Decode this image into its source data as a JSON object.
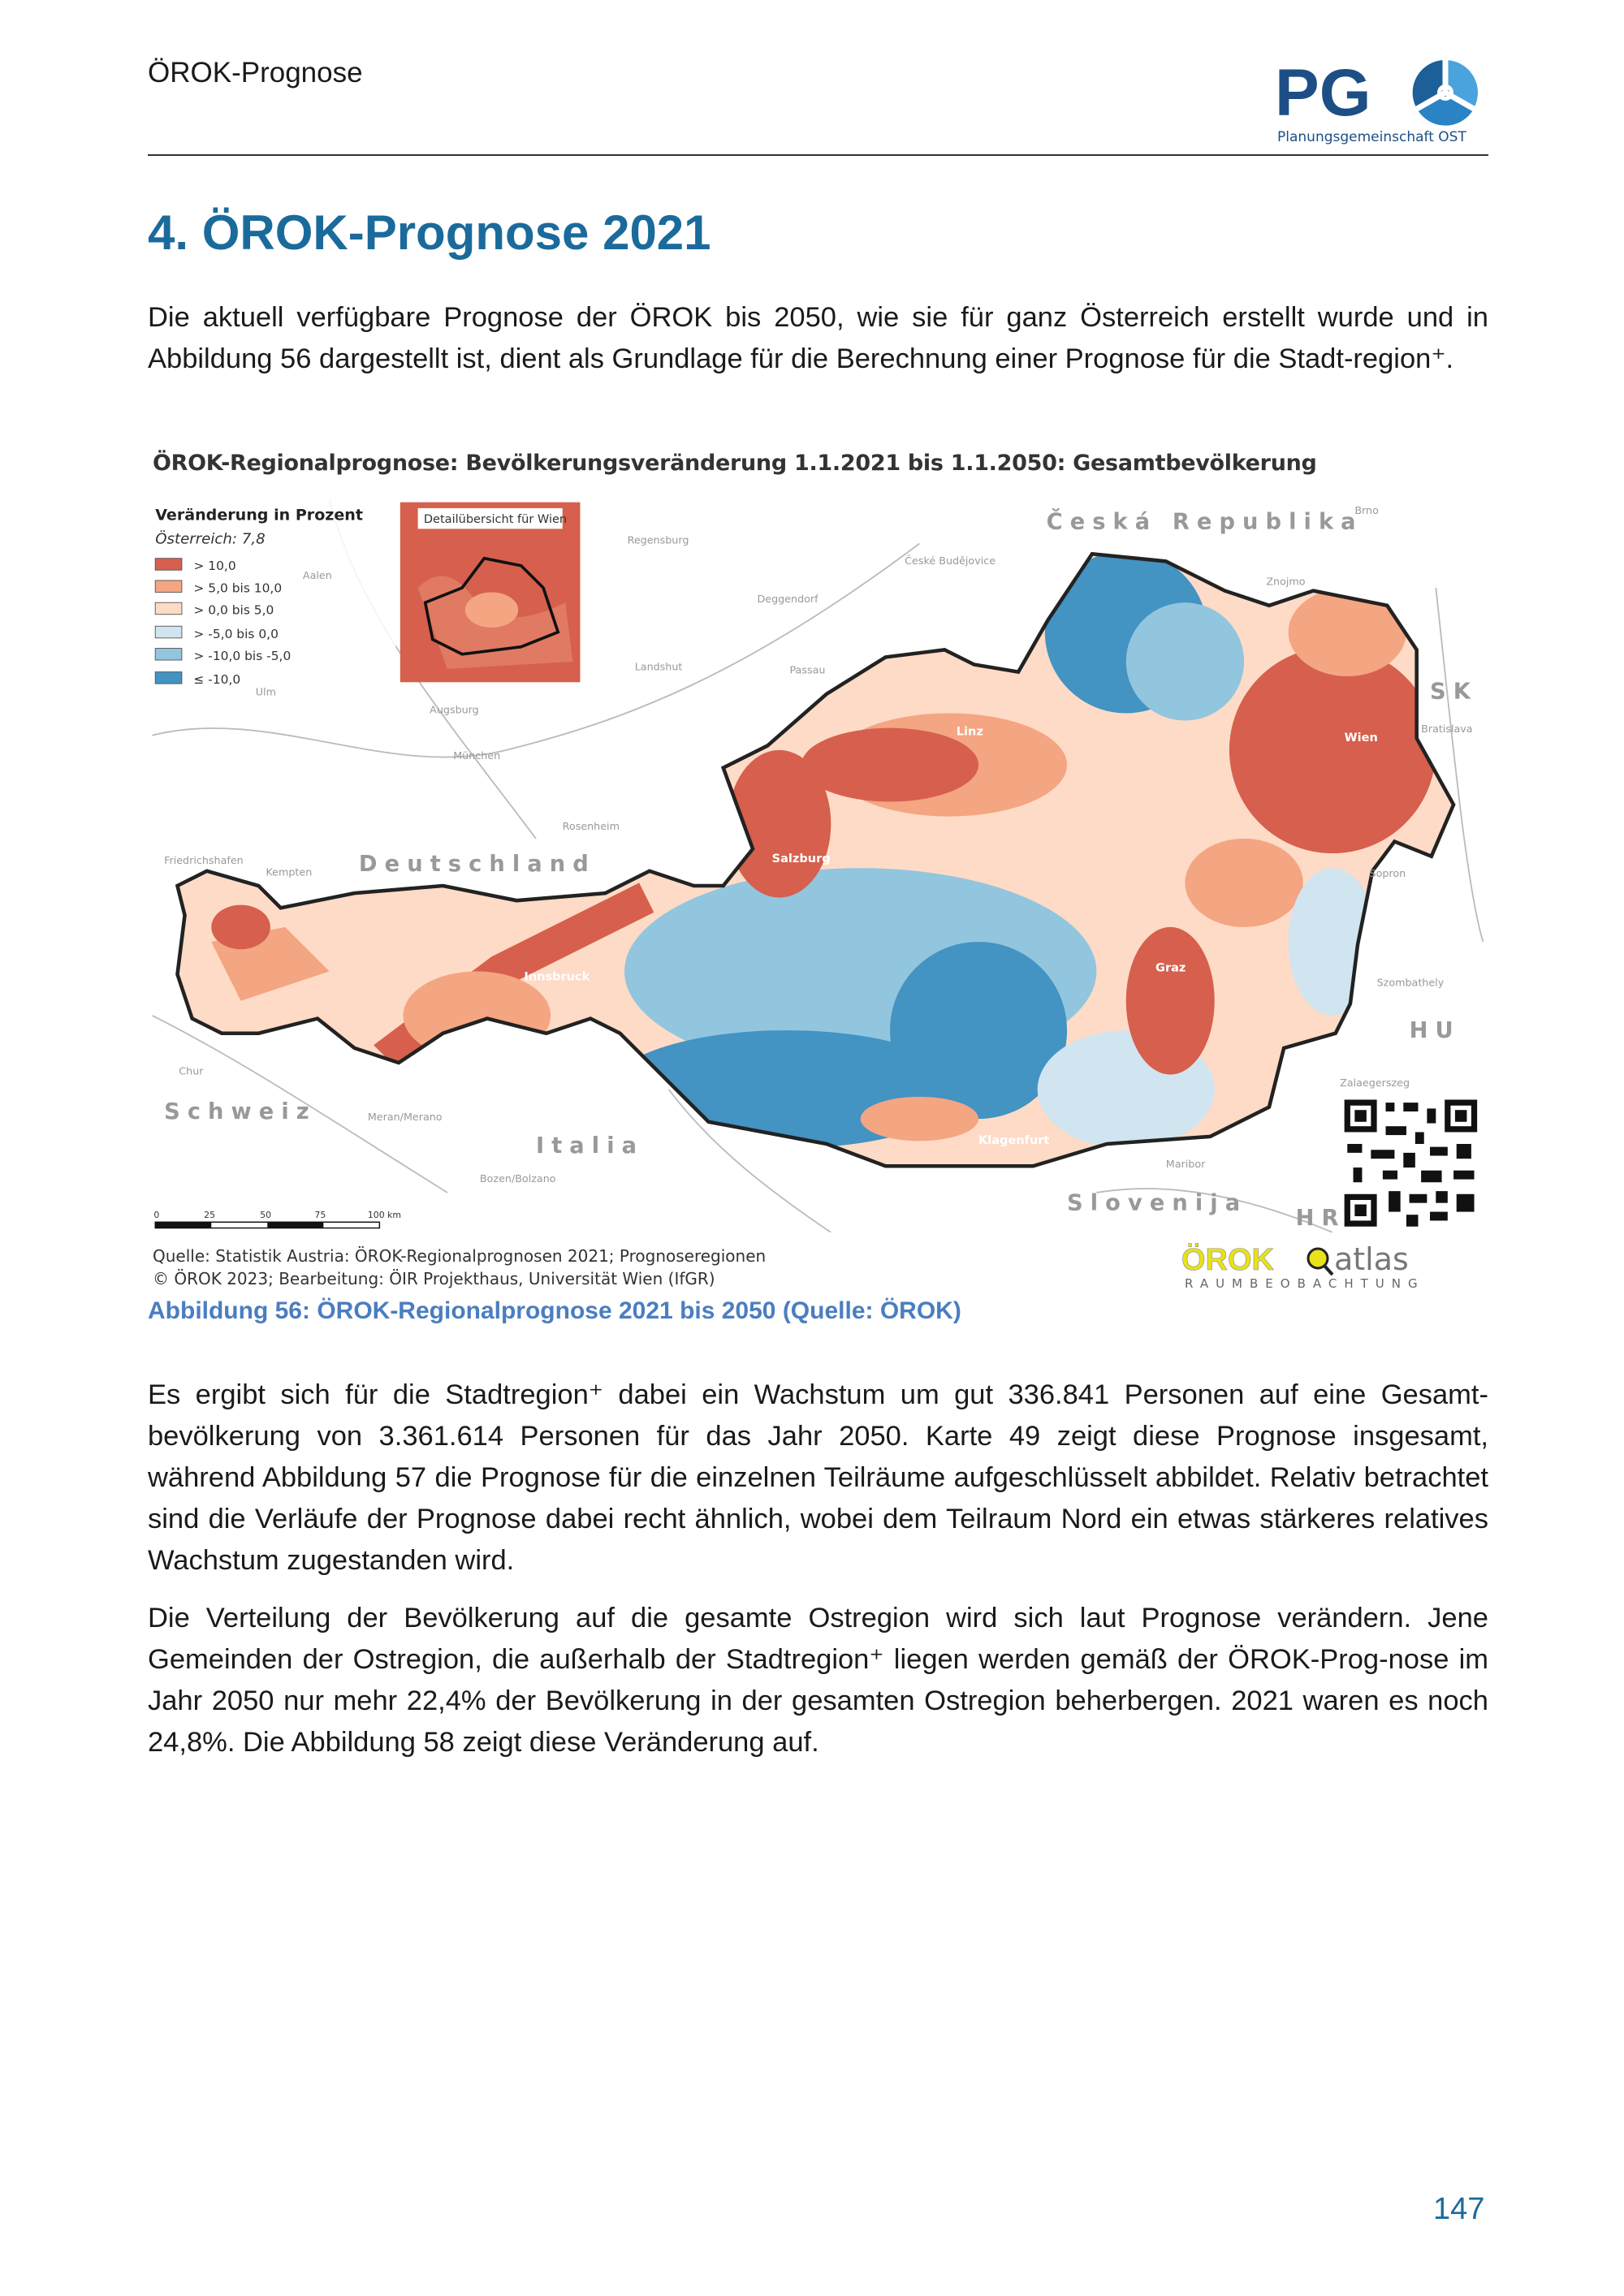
{
  "header": {
    "running_title": "ÖROK-Prognose",
    "logo_text": "PG",
    "logo_subtitle": "Planungsgemeinschaft OST"
  },
  "section": {
    "title": "4. ÖROK-Prognose 2021"
  },
  "paragraphs": [
    "Die aktuell verfügbare Prognose der ÖROK bis 2050, wie sie für ganz Österreich erstellt wurde und in Abbildung 56 dargestellt ist, dient als Grundlage für die Berechnung einer Prognose für die Stadt-region⁺.",
    "Es ergibt sich für die Stadtregion⁺ dabei ein Wachstum um gut 336.841 Personen auf eine Gesamt-bevölkerung von 3.361.614 Personen für das Jahr 2050. Karte 49 zeigt diese Prognose insgesamt, während Abbildung 57 die Prognose für die einzelnen Teilräume aufgeschlüsselt abbildet. Relativ betrachtet sind die Verläufe der Prognose dabei recht ähnlich, wobei dem Teilraum Nord ein etwas stärkeres relatives Wachstum zugestanden wird.",
    "Die Verteilung der Bevölkerung auf die gesamte Ostregion wird sich laut Prognose verändern. Jene Gemeinden der Ostregion, die außerhalb der Stadtregion⁺ liegen werden gemäß der ÖROK-Prog-nose im Jahr 2050 nur mehr 22,4% der Bevölkerung in der gesamten Ostregion beherbergen. 2021 waren es noch 24,8%. Die Abbildung 58 zeigt diese Veränderung auf."
  ],
  "figure": {
    "title": "ÖROK-Regionalprognose: Bevölkerungsveränderung 1.1.2021 bis 1.1.2050: Gesamtbevölkerung",
    "legend": {
      "title": "Veränderung in Prozent",
      "subtitle": "Österreich: 7,8",
      "classes": [
        {
          "label": "> 10,0",
          "color": "#d6604d"
        },
        {
          "label": "> 5,0  bis  10,0",
          "color": "#f4a582"
        },
        {
          "label": "> 0,0  bis  5,0",
          "color": "#fddbc7"
        },
        {
          "label": "> -5,0  bis  0,0",
          "color": "#d1e5f0"
        },
        {
          "label": "> -10,0  bis  -5,0",
          "color": "#92c5de"
        },
        {
          "label": "≤ -10,0",
          "color": "#4393c3"
        }
      ]
    },
    "inset_label": "Detailübersicht für Wien",
    "countries": [
      "Česká Republika",
      "SK",
      "Deutschland",
      "Schweiz",
      "Italia",
      "Slovenija",
      "HR",
      "HU"
    ],
    "cities": [
      "Regensburg",
      "České Budějovice",
      "Brno",
      "Znojmo",
      "Deggendorf",
      "Passau",
      "Landshut",
      "Augsburg",
      "München",
      "Rosenheim",
      "Bratislava",
      "Friedrichshafen",
      "Kempten",
      "Aalen",
      "Ulm",
      "Sopron",
      "Szombathely",
      "Zalaegerszeg",
      "Maribor",
      "Meran/Merano",
      "Bozen/Bolzano",
      "Chur",
      "Wien",
      "Linz",
      "Graz",
      "Innsbruck",
      "Salzburg",
      "Klagenfurt"
    ],
    "scalebar": {
      "ticks": [
        "0",
        "25",
        "50",
        "75",
        "100 km"
      ]
    },
    "source_line1": "Quelle: Statistik Austria: ÖROK-Regionalprognosen 2021; Prognoseregionen",
    "source_line2": "© ÖROK 2023; Bearbeitung: ÖIR Projekthaus, Universität Wien (IfGR)",
    "atlas_logo": {
      "word1": "ÖROK",
      "word2": "atlas",
      "sub": "RAUMBEOBACHTUNG"
    },
    "caption": "Abbildung 56: ÖROK-Regionalprognose 2021 bis 2050 (Quelle: ÖROK)"
  },
  "page_number": "147"
}
